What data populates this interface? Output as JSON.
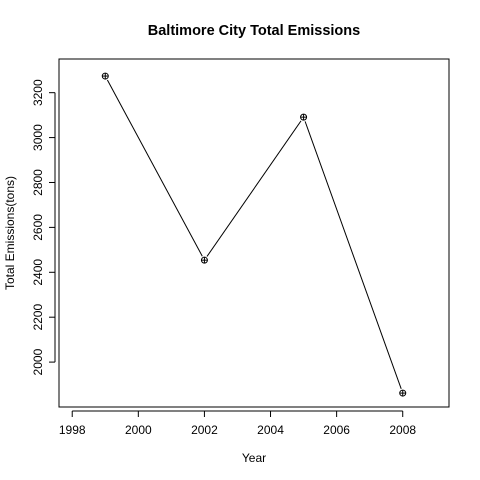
{
  "chart_data": {
    "type": "line",
    "title": "Baltimore City Total Emissions",
    "xlabel": "Year",
    "ylabel": "Total Emissions(tons)",
    "xlim": [
      1997.6,
      2009.4
    ],
    "ylim": [
      1800,
      3350
    ],
    "x_ticks": [
      "1998",
      "2000",
      "2002",
      "2004",
      "2006",
      "2008"
    ],
    "y_ticks": [
      "2000",
      "2200",
      "2400",
      "2600",
      "2800",
      "3000",
      "3200"
    ],
    "grid": false,
    "legend": "none",
    "marker": "circle-plus",
    "x": [
      1999,
      2002,
      2005,
      2008
    ],
    "y": [
      3274,
      2454,
      3091,
      1862
    ]
  }
}
